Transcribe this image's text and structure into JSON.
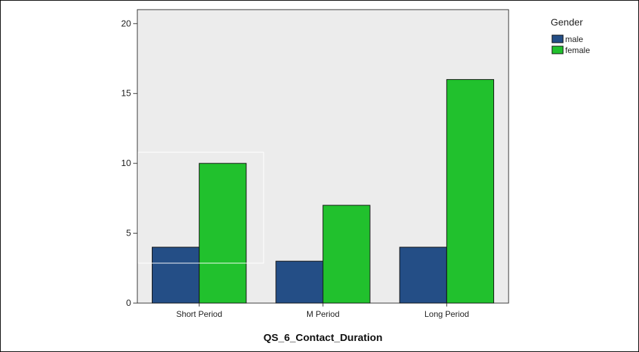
{
  "chart_data": {
    "type": "bar",
    "categories": [
      "Short Period",
      "M Period",
      "Long Period"
    ],
    "series": [
      {
        "name": "male",
        "values": [
          4,
          3,
          4
        ]
      },
      {
        "name": "female",
        "values": [
          10,
          7,
          16
        ]
      }
    ],
    "xlabel": "QS_6_Contact_Duration",
    "ylabel": "",
    "ylim": [
      0,
      21
    ],
    "yticks": [
      0,
      5,
      10,
      15,
      20
    ],
    "legend": {
      "title": "Gender",
      "position": "top-right"
    },
    "grid": false
  },
  "colors": {
    "plot_background": "#ececec",
    "male": "#244e86",
    "female": "#21c12d",
    "axis": "#333333"
  }
}
